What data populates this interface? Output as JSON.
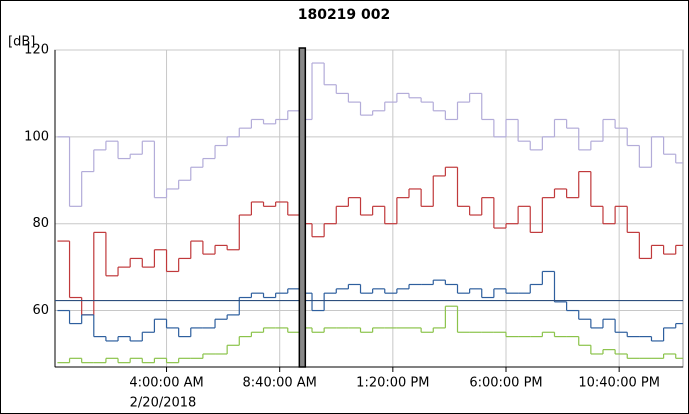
{
  "chart_data": {
    "type": "line",
    "step": true,
    "title": "180219 002",
    "y_label": "[dB]",
    "x_sublabel": "2/20/2018",
    "x": [
      -0.5,
      0,
      0.5,
      1,
      1.5,
      2,
      2.5,
      3,
      3.5,
      4,
      4.5,
      5,
      5.5,
      6,
      6.5,
      7,
      7.5,
      8,
      8.5,
      9,
      9.5,
      10,
      10.5,
      11,
      11.5,
      12,
      12.5,
      13,
      13.5,
      14,
      14.5,
      15,
      15.5,
      16,
      16.5,
      17,
      17.5,
      18,
      18.5,
      19,
      19.5,
      20,
      20.5,
      21,
      21.5,
      22,
      22.5,
      23,
      23.5,
      24,
      24.5,
      25
    ],
    "series": [
      {
        "color": "#b3acd9",
        "values": [
          100,
          84,
          92,
          97,
          99,
          95,
          96,
          99,
          86,
          88,
          90,
          93,
          95,
          98,
          100,
          102,
          104,
          103,
          104,
          106,
          104,
          117,
          112,
          110,
          108,
          105,
          106,
          108,
          110,
          109,
          108,
          106,
          104,
          108,
          110,
          104,
          100,
          104,
          99,
          97,
          100,
          104,
          102,
          97,
          99,
          104,
          102,
          98,
          93,
          100,
          96,
          94
        ]
      },
      {
        "color": "#c0393b",
        "values": [
          76,
          63,
          59,
          78,
          68,
          70,
          72,
          70,
          74,
          69,
          72,
          76,
          73,
          75,
          74,
          82,
          85,
          84,
          85,
          82,
          80,
          77,
          80,
          84,
          86,
          82,
          84,
          80,
          86,
          88,
          84,
          91,
          93,
          84,
          82,
          86,
          79,
          80,
          84,
          78,
          86,
          88,
          86,
          92,
          84,
          80,
          84,
          78,
          72,
          75,
          73,
          75
        ]
      },
      {
        "color": "#2e5f9e",
        "values": [
          60,
          57,
          59,
          54,
          53,
          54,
          53,
          55,
          58,
          56,
          54,
          56,
          56,
          58,
          59,
          63,
          64,
          63,
          64,
          65,
          64,
          60,
          64,
          65,
          66,
          64,
          65,
          64,
          65,
          66,
          66,
          67,
          66,
          64,
          65,
          63,
          65,
          64,
          64,
          66,
          69,
          62,
          60,
          58,
          56,
          58,
          55,
          54,
          54,
          53,
          56,
          57
        ]
      },
      {
        "color": "#8bc34a",
        "values": [
          48,
          49,
          48,
          48,
          49,
          48,
          49,
          48,
          49,
          48,
          49,
          49,
          50,
          50,
          52,
          54,
          55,
          56,
          56,
          55,
          56,
          55,
          56,
          56,
          56,
          55,
          56,
          56,
          56,
          56,
          55,
          56,
          61,
          55,
          55,
          55,
          55,
          54,
          54,
          54,
          55,
          54,
          54,
          52,
          50,
          51,
          50,
          49,
          49,
          49,
          50,
          49
        ]
      }
    ],
    "reference_y": 62.3,
    "reference_color": "#2e4f7e",
    "cursor_x": 9.6,
    "xlim": [
      -0.6,
      25.3
    ],
    "xticks": [
      {
        "value": 4,
        "label": "4:00:00 AM"
      },
      {
        "value": 8.667,
        "label": "8:40:00 AM"
      },
      {
        "value": 13.333,
        "label": "1:20:00 PM"
      },
      {
        "value": 18,
        "label": "6:00:00 PM"
      },
      {
        "value": 22.667,
        "label": "10:40:00 PM"
      }
    ],
    "ylim": [
      47,
      120
    ],
    "yticks": [
      60,
      80,
      100,
      120
    ],
    "grid": true
  }
}
